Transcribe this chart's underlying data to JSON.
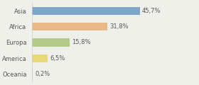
{
  "categories": [
    "Asia",
    "Africa",
    "Europa",
    "America",
    "Oceania"
  ],
  "values": [
    45.7,
    31.8,
    15.8,
    6.5,
    0.2
  ],
  "labels": [
    "45,7%",
    "31,8%",
    "15,8%",
    "6,5%",
    "0,2%"
  ],
  "bar_colors": [
    "#7ea6c8",
    "#e8b98a",
    "#b5c98a",
    "#e8d87a",
    "#c8c8c8"
  ],
  "background_color": "#f0f0eb",
  "bar_height": 0.5,
  "label_fontsize": 6.0,
  "category_fontsize": 6.0,
  "xlim": [
    0,
    70
  ]
}
